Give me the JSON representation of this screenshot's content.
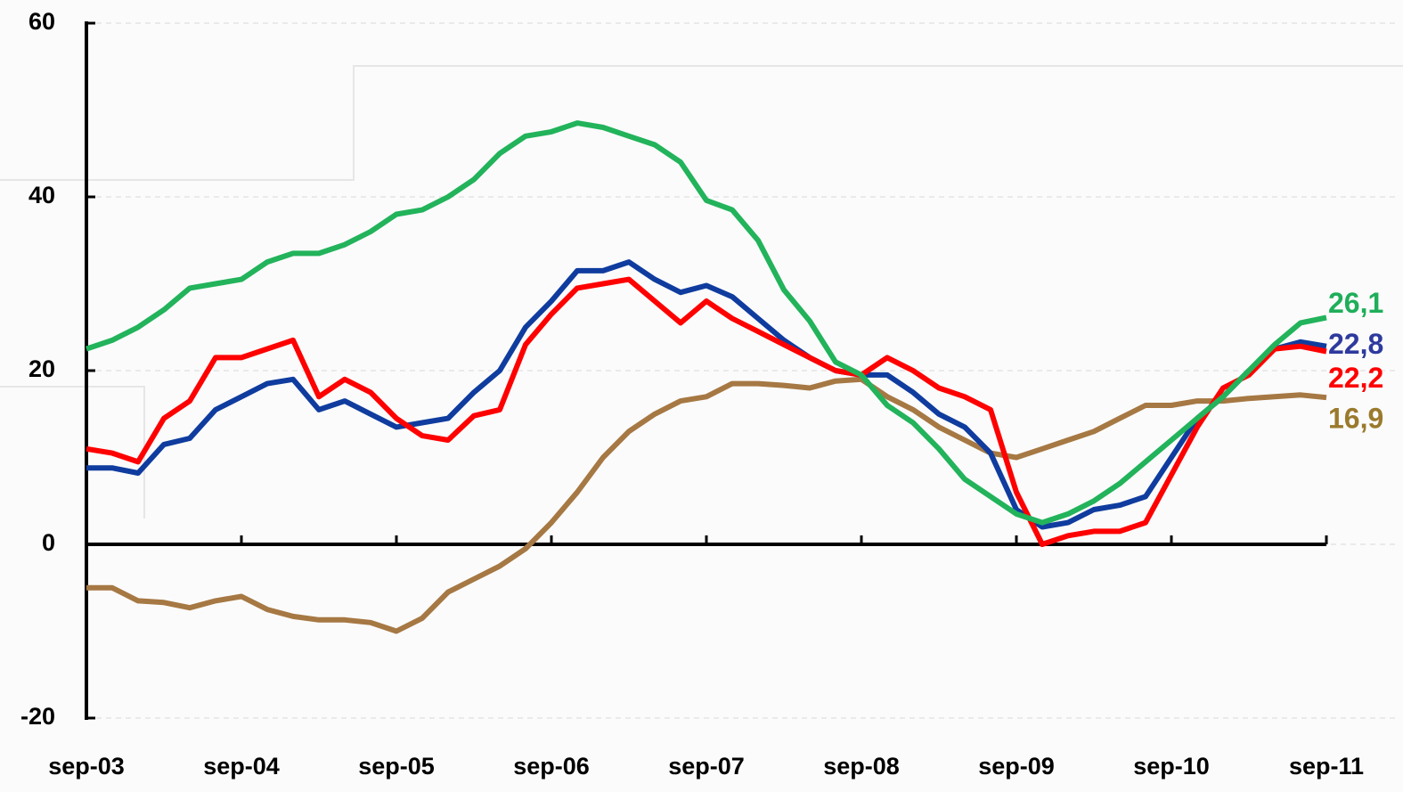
{
  "chart_data": {
    "type": "line",
    "categories": [
      "sep-03",
      null,
      null,
      null,
      null,
      null,
      "sep-04",
      null,
      null,
      null,
      null,
      null,
      "sep-05",
      null,
      null,
      null,
      null,
      null,
      "sep-06",
      null,
      null,
      null,
      null,
      null,
      "sep-07",
      null,
      null,
      null,
      null,
      null,
      "sep-08",
      null,
      null,
      null,
      null,
      null,
      "sep-09",
      null,
      null,
      null,
      null,
      null,
      "sep-10",
      null,
      null,
      null,
      null,
      null,
      "sep-11"
    ],
    "ylim": [
      -20,
      60
    ],
    "yticks": [
      -20,
      0,
      20,
      40,
      60
    ],
    "grid": true,
    "series": [
      {
        "color": "#22b35b",
        "label_color": "#1fae5a",
        "values": [
          22.5,
          23.5,
          25,
          27,
          29.5,
          30,
          30.5,
          32.5,
          33.5,
          33.5,
          34.5,
          36,
          38,
          38.5,
          40,
          42,
          45,
          47,
          47.5,
          48.5,
          48,
          47,
          46,
          44,
          39.6,
          38.5,
          35,
          29.3,
          25.7,
          21,
          19.5,
          16,
          14,
          11,
          7.5,
          5.5,
          3.5,
          2.5,
          3.5,
          5,
          7,
          9.5,
          12,
          14.5,
          17,
          20,
          23,
          25.5,
          26.1
        ],
        "value_labels": [
          null,
          null,
          null,
          null,
          null,
          null,
          null,
          null,
          null,
          null,
          null,
          null,
          null,
          null,
          null,
          null,
          null,
          null,
          null,
          null,
          null,
          null,
          null,
          null,
          null,
          null,
          null,
          null,
          null,
          null,
          null,
          null,
          null,
          null,
          null,
          null,
          null,
          null,
          null,
          null,
          null,
          null,
          null,
          null,
          null,
          null,
          null,
          null,
          "26,1"
        ]
      },
      {
        "color": "#0f3c9e",
        "label_color": "#2e3a9e",
        "values": [
          8.8,
          8.8,
          8.2,
          11.5,
          12.2,
          15.5,
          17,
          18.5,
          19,
          15.5,
          16.5,
          15,
          13.5,
          14,
          14.5,
          17.5,
          20,
          25,
          28,
          31.5,
          31.5,
          32.5,
          30.5,
          29,
          29.8,
          28.5,
          26,
          23.5,
          21.5,
          20,
          19.5,
          19.5,
          17.5,
          15,
          13.5,
          10.5,
          4,
          2,
          2.5,
          4,
          4.5,
          5.5,
          10,
          14.5,
          17,
          20,
          22.5,
          23.3,
          22.8
        ],
        "value_labels": [
          null,
          null,
          null,
          null,
          null,
          null,
          null,
          null,
          null,
          null,
          null,
          null,
          null,
          null,
          null,
          null,
          null,
          null,
          null,
          null,
          null,
          null,
          null,
          null,
          null,
          null,
          null,
          null,
          null,
          null,
          null,
          null,
          null,
          null,
          null,
          null,
          null,
          null,
          null,
          null,
          null,
          null,
          null,
          null,
          null,
          null,
          null,
          null,
          "22,8"
        ]
      },
      {
        "color": "#ff0000",
        "label_color": "#ff0000",
        "values": [
          11,
          10.5,
          9.5,
          14.5,
          16.5,
          21.5,
          21.5,
          22.5,
          23.5,
          17,
          19,
          17.5,
          14.5,
          12.5,
          12,
          14.8,
          15.5,
          23,
          26.5,
          29.5,
          30,
          30.5,
          28,
          25.5,
          28,
          26,
          24.5,
          23,
          21.5,
          20,
          19.5,
          21.5,
          20,
          18,
          17,
          15.5,
          6,
          0,
          1,
          1.5,
          1.5,
          2.5,
          8,
          13.5,
          18,
          19.5,
          22.5,
          22.8,
          22.2
        ],
        "value_labels": [
          null,
          null,
          null,
          null,
          null,
          null,
          null,
          null,
          null,
          null,
          null,
          null,
          null,
          null,
          null,
          null,
          null,
          null,
          null,
          null,
          null,
          null,
          null,
          null,
          null,
          null,
          null,
          null,
          null,
          null,
          null,
          null,
          null,
          null,
          null,
          null,
          null,
          null,
          null,
          null,
          null,
          null,
          null,
          null,
          null,
          null,
          null,
          null,
          "22,2"
        ]
      },
      {
        "color": "#a67843",
        "label_color": "#9a7a2c",
        "values": [
          -5,
          -5,
          -6.5,
          -6.7,
          -7.3,
          -6.5,
          -6,
          -7.5,
          -8.3,
          -8.7,
          -8.7,
          -9,
          -10,
          -8.5,
          -5.5,
          -4,
          -2.5,
          -0.5,
          2.5,
          6,
          10,
          13,
          15,
          16.5,
          17,
          18.5,
          18.5,
          18.3,
          18,
          18.8,
          19,
          17,
          15.5,
          13.5,
          12,
          10.5,
          10,
          11,
          12,
          13,
          14.5,
          16,
          16,
          16.5,
          16.5,
          16.8,
          17,
          17.2,
          16.9
        ],
        "value_labels": [
          null,
          null,
          null,
          null,
          null,
          null,
          null,
          null,
          null,
          null,
          null,
          null,
          null,
          null,
          null,
          null,
          null,
          null,
          null,
          null,
          null,
          null,
          null,
          null,
          null,
          null,
          null,
          null,
          null,
          null,
          null,
          null,
          null,
          null,
          null,
          null,
          null,
          null,
          null,
          null,
          null,
          null,
          null,
          null,
          null,
          null,
          null,
          null,
          "16,9"
        ]
      }
    ]
  }
}
